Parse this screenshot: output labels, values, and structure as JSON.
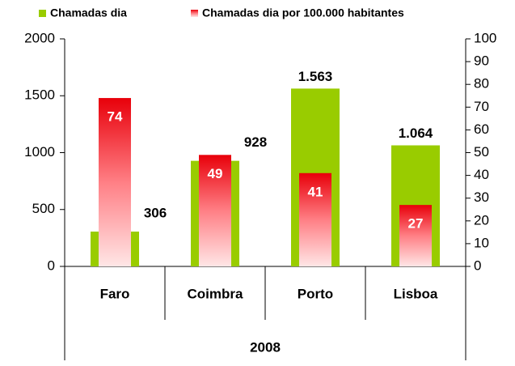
{
  "chart_data": {
    "type": "bar",
    "categories": [
      "Faro",
      "Coimbra",
      "Porto",
      "Lisboa"
    ],
    "group_label": "2008",
    "series": [
      {
        "name": "Chamadas dia",
        "color": "#99cc00",
        "values": [
          306,
          928,
          1563,
          1064
        ],
        "value_labels": [
          "306",
          "928",
          "1.563",
          "1.064"
        ]
      },
      {
        "name": "Chamadas dia por 100.000 habitantes",
        "color": "#e8000a",
        "axis": "y2",
        "values": [
          74,
          49,
          41,
          27
        ]
      }
    ],
    "ylim": [
      0,
      2000
    ],
    "yticks": [
      0,
      500,
      1000,
      1500,
      2000
    ],
    "y2lim": [
      0,
      100
    ],
    "y2ticks": [
      0,
      10,
      20,
      30,
      40,
      50,
      60,
      70,
      80,
      90,
      100
    ],
    "grid": false
  }
}
